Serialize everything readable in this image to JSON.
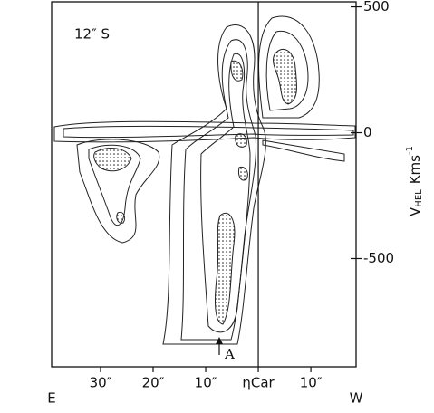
{
  "chart_data": {
    "type": "contour",
    "annotation": "12″ S",
    "marker_label": "A",
    "x_left_label": "E",
    "x_right_label": "W",
    "y_label": {
      "symbol": "V",
      "subscript": "HEL",
      "unit": "Kms",
      "superscript": "-1"
    },
    "xlim": [
      39.3,
      -18.6
    ],
    "xticks": [
      {
        "value": 30,
        "label": "30″"
      },
      {
        "value": 20,
        "label": "20″"
      },
      {
        "value": 10,
        "label": "10″"
      },
      {
        "value": 0,
        "label": "ηCar"
      },
      {
        "value": -10,
        "label": "10″"
      }
    ],
    "ylim": [
      -930,
      520
    ],
    "yticks": [
      500,
      0,
      -500
    ],
    "y_axis_side": "right"
  }
}
